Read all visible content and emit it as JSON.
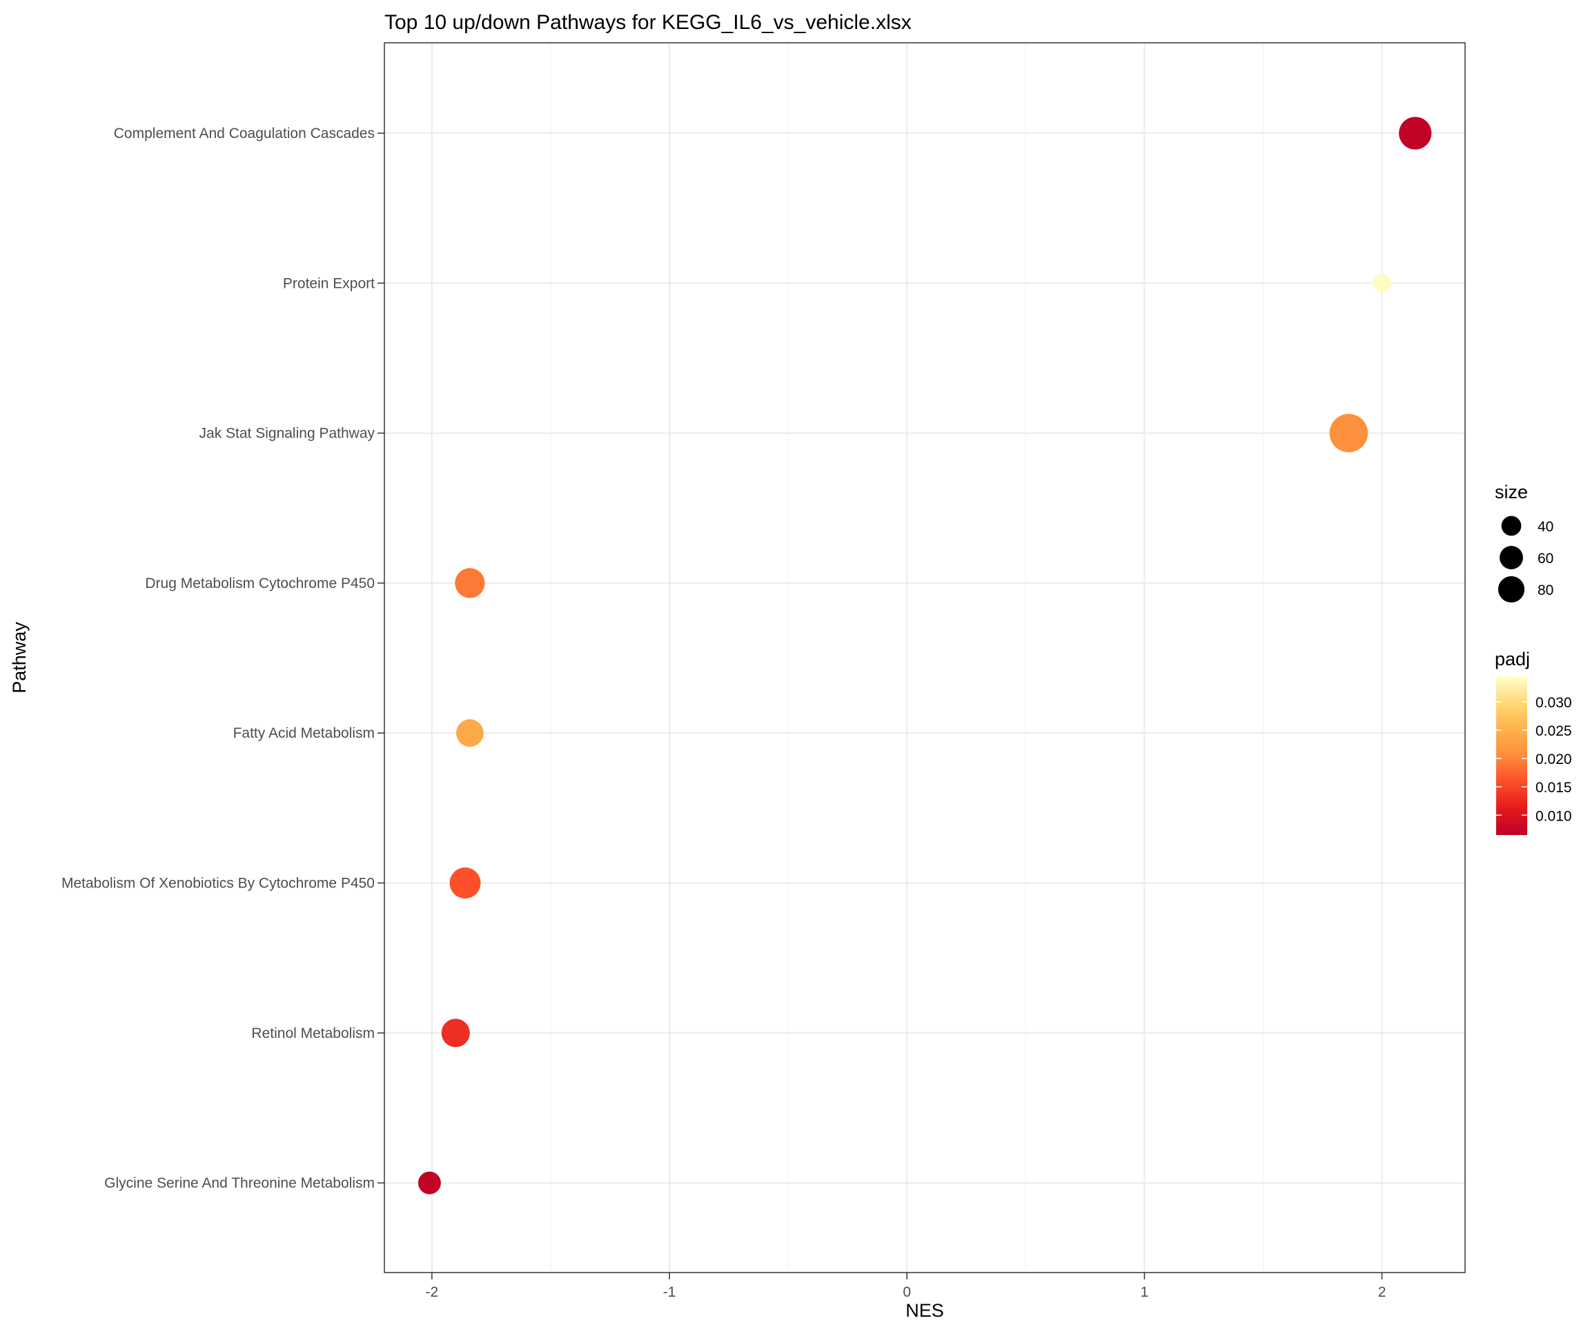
{
  "chart_data": {
    "type": "scatter",
    "title": "Top 10 up/down Pathways for  KEGG_IL6_vs_vehicle.xlsx",
    "xlabel": "NES",
    "ylabel": "Pathway",
    "xlim": [
      -2.2,
      2.35
    ],
    "x_ticks": [
      -2,
      -1,
      0,
      1,
      2
    ],
    "x_tick_labels": [
      "-2",
      "-1",
      "0",
      "1",
      "2"
    ],
    "categories": [
      "Complement And Coagulation Cascades",
      "Protein Export",
      "Jak Stat Signaling Pathway",
      "Drug Metabolism Cytochrome P450",
      "Fatty Acid Metabolism",
      "Metabolism Of Xenobiotics By Cytochrome P450",
      "Retinol Metabolism",
      "Glycine Serine And Threonine Metabolism"
    ],
    "points": [
      {
        "pathway": "Complement And Coagulation Cascades",
        "NES": 2.14,
        "size": 62,
        "padj": 0.007
      },
      {
        "pathway": "Protein Export",
        "NES": 2.0,
        "size": 20,
        "padj": 0.034
      },
      {
        "pathway": "Jak Stat Signaling Pathway",
        "NES": 1.86,
        "size": 86,
        "padj": 0.021
      },
      {
        "pathway": "Drug Metabolism Cytochrome P450",
        "NES": -1.84,
        "size": 52,
        "padj": 0.019
      },
      {
        "pathway": "Fatty Acid Metabolism",
        "NES": -1.84,
        "size": 44,
        "padj": 0.024
      },
      {
        "pathway": "Metabolism Of Xenobiotics By Cytochrome P450",
        "NES": -1.86,
        "size": 56,
        "padj": 0.016
      },
      {
        "pathway": "Retinol Metabolism",
        "NES": -1.9,
        "size": 47,
        "padj": 0.013
      },
      {
        "pathway": "Glycine Serine And Threonine Metabolism",
        "NES": -2.01,
        "size": 30,
        "padj": 0.007
      }
    ],
    "grid": true,
    "legend": {
      "placement": "right",
      "size": {
        "title": "size",
        "values": [
          40,
          60,
          80
        ],
        "labels": [
          "40",
          "60",
          "80"
        ]
      },
      "color": {
        "title": "padj",
        "range": [
          0.0065,
          0.0345
        ],
        "ticks": [
          0.03,
          0.025,
          0.02,
          0.015,
          0.01
        ],
        "labels": [
          "0.030",
          "0.025",
          "0.020",
          "0.015",
          "0.010"
        ],
        "colors_low_to_high": [
          "#bd0026",
          "#e31a1c",
          "#fc4e2a",
          "#fd8d3c",
          "#feb24c",
          "#fed976",
          "#ffffcc"
        ]
      }
    }
  }
}
